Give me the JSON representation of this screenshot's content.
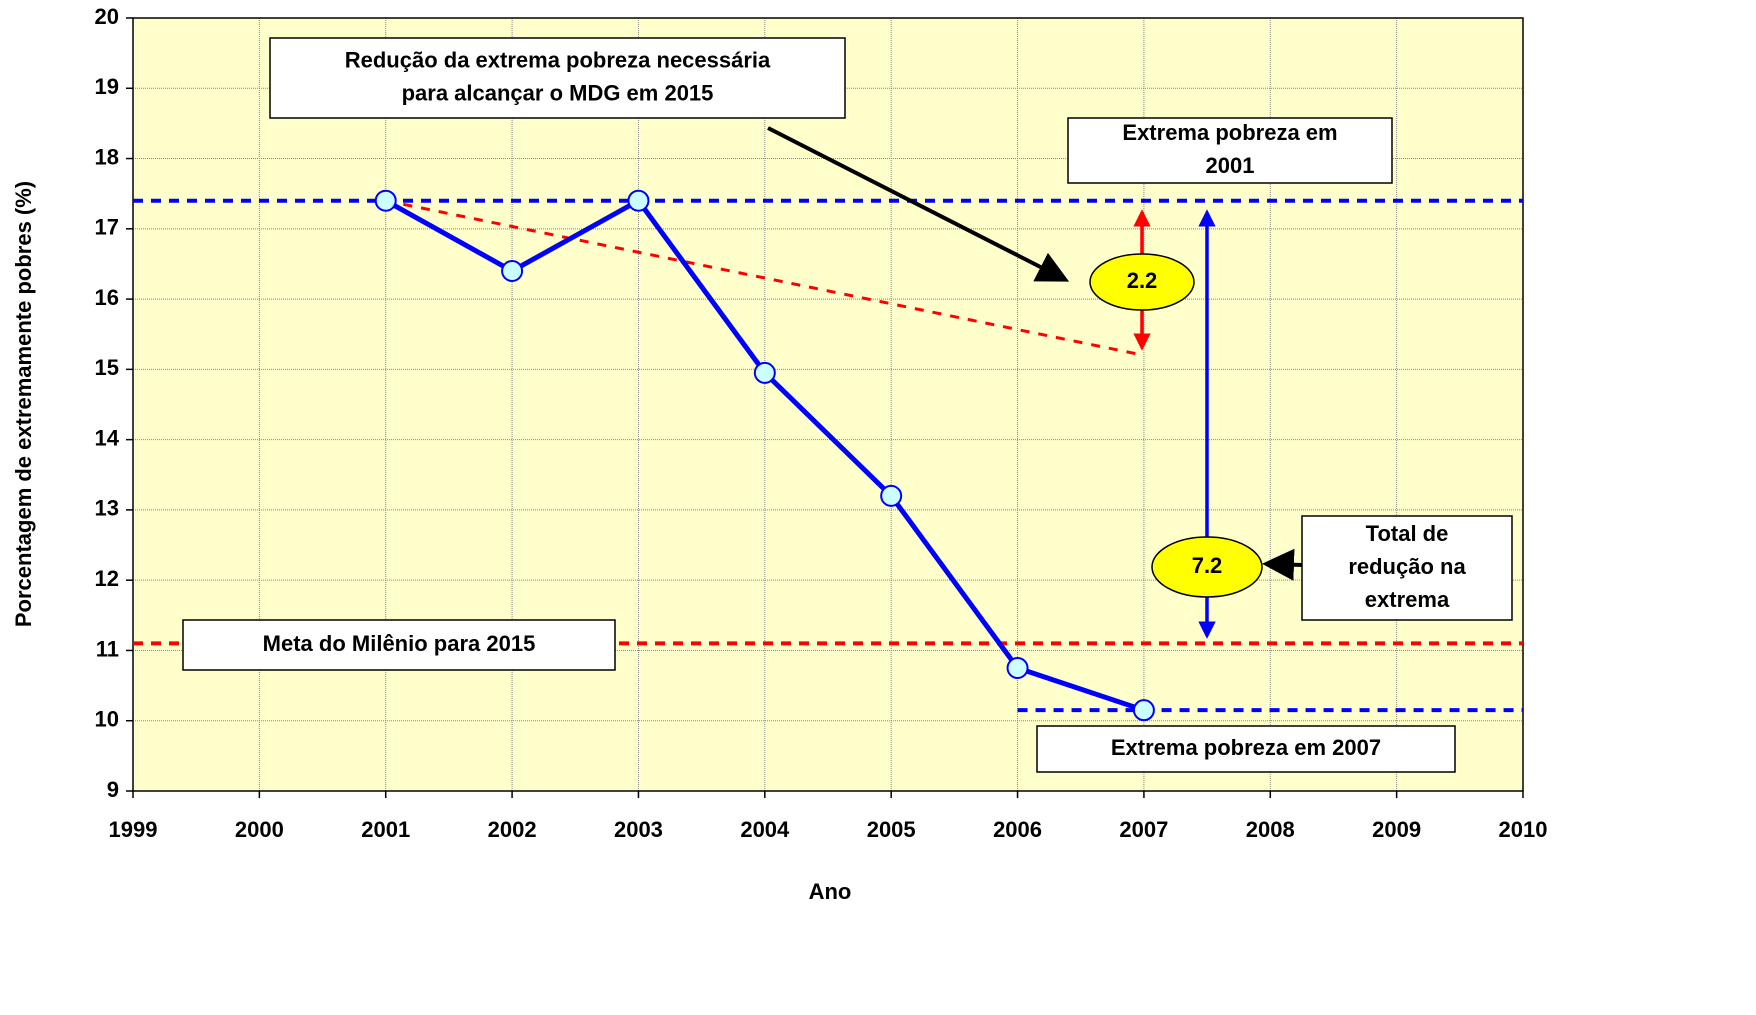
{
  "chart_data": {
    "type": "line",
    "xlabel": "Ano",
    "ylabel": "Porcentagem de extremamente pobres (%)",
    "x": [
      2001,
      2002,
      2003,
      2004,
      2005,
      2006,
      2007
    ],
    "series": [
      {
        "name": "Extrema pobreza",
        "color": "#0000ff",
        "values": [
          17.4,
          16.4,
          17.4,
          14.95,
          13.2,
          10.75,
          10.15
        ]
      }
    ],
    "xlim": [
      1999,
      2010
    ],
    "xticks": [
      1999,
      2000,
      2001,
      2002,
      2003,
      2004,
      2005,
      2006,
      2007,
      2008,
      2009,
      2010
    ],
    "ylim": [
      9,
      20
    ],
    "yticks": [
      9,
      10,
      11,
      12,
      13,
      14,
      15,
      16,
      17,
      18,
      19,
      20
    ],
    "grid": true,
    "reference_lines": [
      {
        "y": 17.4,
        "color": "#0000ff",
        "x": [
          1999,
          2010
        ]
      },
      {
        "y": 11.1,
        "color": "#ff0000",
        "x": [
          1999,
          2010
        ]
      },
      {
        "y": 10.15,
        "color": "#0000ff",
        "x": [
          2006,
          2010
        ]
      }
    ],
    "trend": {
      "x": [
        2001,
        2007
      ],
      "values": [
        17.4,
        15.2
      ],
      "color": "#ff0000"
    },
    "annotations": [
      {
        "lines": [
          "Redução da extrema pobreza necessária",
          "para alcançar o MDG em 2015"
        ]
      },
      {
        "lines": [
          "Extrema pobreza em",
          "2001"
        ]
      },
      {
        "lines": [
          "Meta do Milênio para 2015"
        ]
      },
      {
        "lines": [
          "Total de",
          "redução na",
          "extrema"
        ]
      },
      {
        "lines": [
          "Extrema pobreza em 2007"
        ]
      },
      {
        "lines": [
          "2.2"
        ]
      },
      {
        "lines": [
          "7.2"
        ]
      }
    ]
  }
}
